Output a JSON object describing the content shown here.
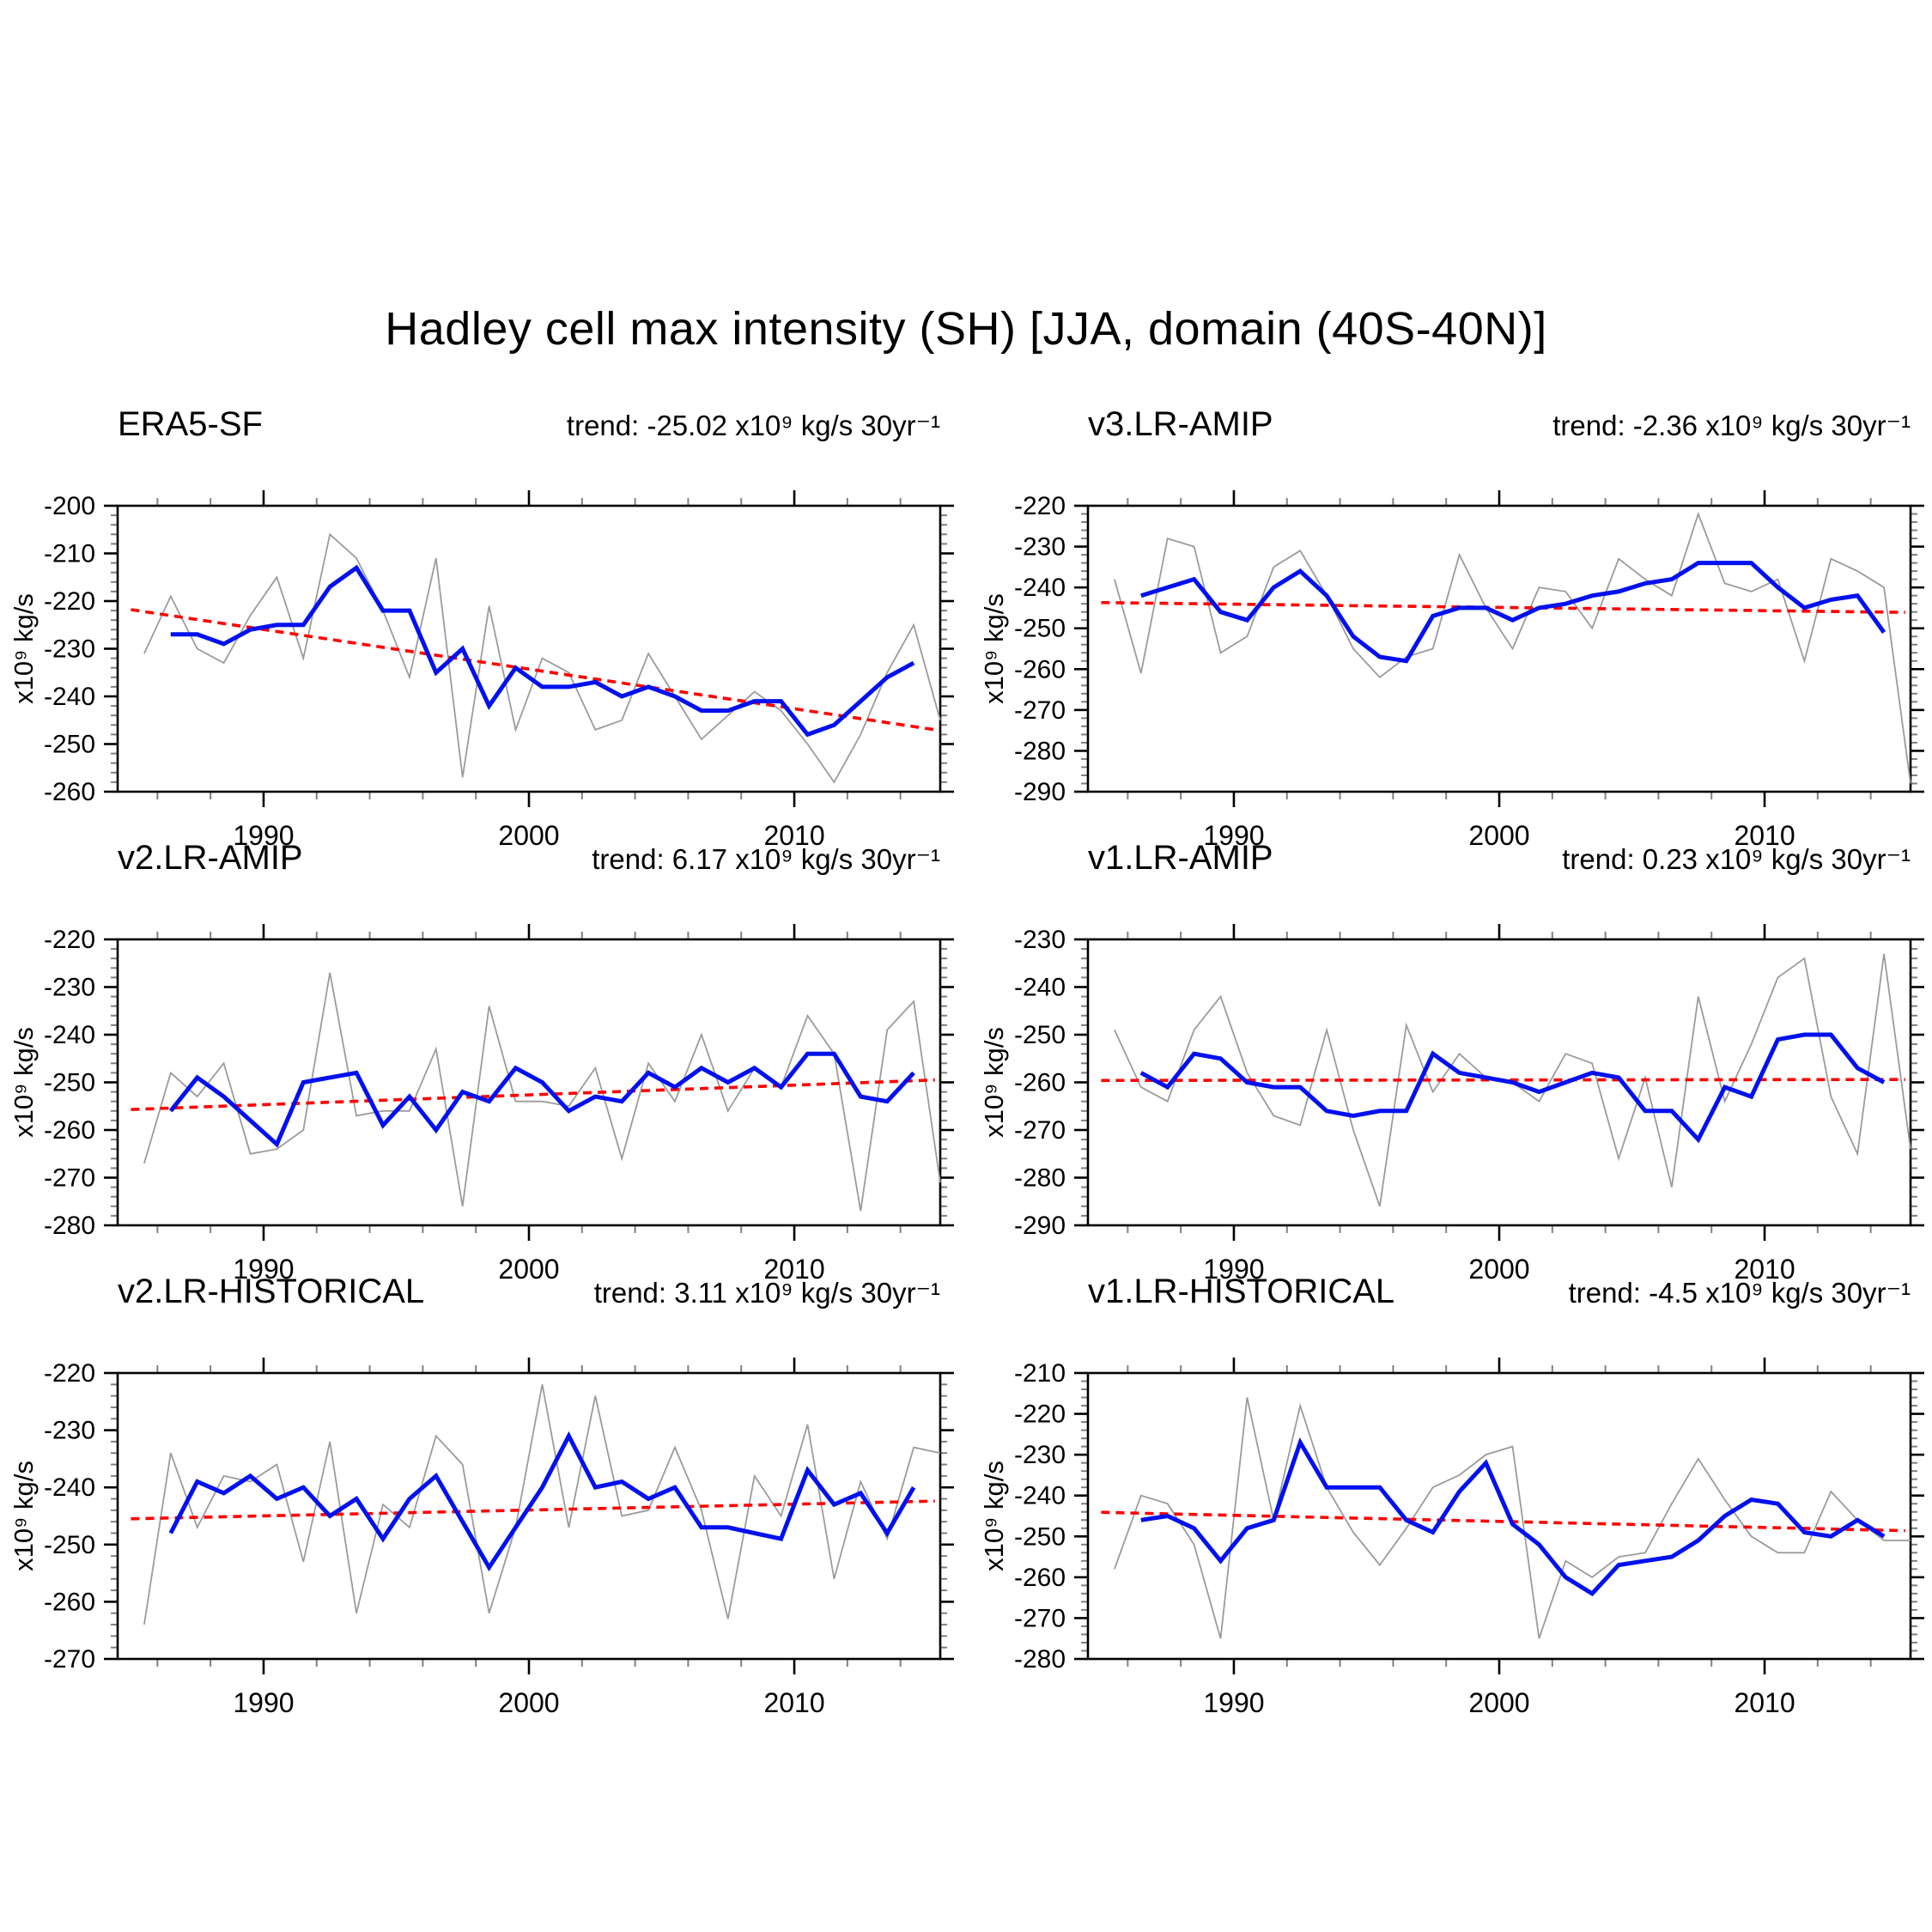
{
  "title": "Hadley cell max intensity (SH) [JJA, domain (40S-40N)]",
  "ylabel": "x10⁹ kg/s",
  "chart_data": {
    "type": "line",
    "title": "Hadley cell max intensity (SH) [JJA, domain (40S-40N)]",
    "xlabel": "",
    "ylabel": "x10⁹ kg/s",
    "grid": false,
    "legend_position": "none",
    "xlim": [
      1984.5,
      2015.5
    ],
    "x_ticks_major": [
      1990,
      2000,
      2010
    ],
    "x_tick_labels": [
      "1990",
      "2000",
      "2010"
    ],
    "x_minor_step": 2,
    "years_annual": [
      1985,
      1986,
      1987,
      1988,
      1989,
      1990,
      1991,
      1992,
      1993,
      1994,
      1995,
      1996,
      1997,
      1998,
      1999,
      2000,
      2001,
      2002,
      2003,
      2004,
      2005,
      2006,
      2007,
      2008,
      2009,
      2010,
      2011,
      2012,
      2013,
      2014,
      2015
    ],
    "years_smoothed": [
      1986,
      1987,
      1988,
      1989,
      1990,
      1991,
      1992,
      1993,
      1994,
      1995,
      1996,
      1997,
      1998,
      1999,
      2000,
      2001,
      2002,
      2003,
      2004,
      2005,
      2006,
      2007,
      2008,
      2009,
      2010,
      2011,
      2012,
      2013,
      2014
    ],
    "series_colors": {
      "annual": "#9b9b9b",
      "smoothed": "#0011ee",
      "trend": "#ff0000"
    },
    "panels": [
      {
        "name": "ERA5-SF",
        "trend_label": "trend: -25.02 x10⁹ kg/s 30yr⁻¹",
        "ylim": [
          -260,
          -200
        ],
        "y_major_step": 10,
        "y_minor_step": 2,
        "annual": [
          -231,
          -219,
          -230,
          -233,
          -223,
          -215,
          -232,
          -206,
          -211,
          -222,
          -236,
          -211,
          -257,
          -221,
          -247,
          -232,
          -235,
          -247,
          -245,
          -231,
          -240,
          -249,
          -244,
          -239,
          -243,
          -250,
          -258,
          -248,
          -235,
          -225,
          -245
        ],
        "smoothed": [
          -227,
          -227,
          -229,
          -226,
          -225,
          -225,
          -217,
          -213,
          -222,
          -222,
          -235,
          -230,
          -242,
          -234,
          -238,
          -238,
          -237,
          -240,
          -238,
          -240,
          -243,
          -243,
          -241,
          -241,
          -248,
          -246,
          -241,
          -236,
          -233
        ],
        "trend_line": {
          "x": [
            1985,
            2015.3
          ],
          "y": [
            -221.8,
            -247.0
          ]
        }
      },
      {
        "name": "v3.LR-AMIP",
        "trend_label": "trend: -2.36 x10⁹ kg/s 30yr⁻¹",
        "ylim": [
          -290,
          -220
        ],
        "y_major_step": 10,
        "y_minor_step": 2,
        "annual": [
          -238,
          -261,
          -228,
          -230,
          -256,
          -252,
          -235,
          -231,
          -242,
          -255,
          -262,
          -257,
          -255,
          -232,
          -245,
          -255,
          -240,
          -241,
          -250,
          -233,
          -238,
          -242,
          -222,
          -239,
          -241,
          -238,
          -258,
          -233,
          -236,
          -240,
          -288
        ],
        "smoothed": [
          -242,
          -240,
          -238,
          -246,
          -248,
          -240,
          -236,
          -242,
          -252,
          -257,
          -258,
          -247,
          -245,
          -245,
          -248,
          -245,
          -244,
          -242,
          -241,
          -239,
          -238,
          -234,
          -234,
          -234,
          -240,
          -245,
          -243,
          -242,
          -251
        ],
        "trend_line": {
          "x": [
            1985,
            2015.3
          ],
          "y": [
            -243.7,
            -246.1
          ]
        }
      },
      {
        "name": "v2.LR-AMIP",
        "trend_label": "trend: 6.17 x10⁹ kg/s 30yr⁻¹",
        "ylim": [
          -280,
          -220
        ],
        "y_major_step": 10,
        "y_minor_step": 2,
        "annual": [
          -267,
          -248,
          -253,
          -246,
          -265,
          -264,
          -260,
          -227,
          -257,
          -256,
          -256,
          -243,
          -276,
          -234,
          -254,
          -254,
          -255,
          -247,
          -266,
          -246,
          -254,
          -240,
          -256,
          -247,
          -251,
          -236,
          -244,
          -277,
          -239,
          -233,
          -271
        ],
        "smoothed": [
          -256,
          -249,
          -253,
          -258,
          -263,
          -250,
          -249,
          -248,
          -259,
          -253,
          -260,
          -252,
          -254,
          -247,
          -250,
          -256,
          -253,
          -254,
          -248,
          -251,
          -247,
          -250,
          -247,
          -251,
          -244,
          -244,
          -253,
          -254,
          -248
        ],
        "trend_line": {
          "x": [
            1985,
            2015.3
          ],
          "y": [
            -255.7,
            -249.5
          ]
        }
      },
      {
        "name": "v1.LR-AMIP",
        "trend_label": "trend: 0.23 x10⁹ kg/s 30yr⁻¹",
        "ylim": [
          -290,
          -230
        ],
        "y_major_step": 10,
        "y_minor_step": 2,
        "annual": [
          -249,
          -261,
          -264,
          -249,
          -242,
          -258,
          -267,
          -269,
          -249,
          -270,
          -286,
          -248,
          -262,
          -254,
          -259,
          -260,
          -264,
          -254,
          -256,
          -276,
          -259,
          -282,
          -242,
          -264,
          -252,
          -238,
          -234,
          -263,
          -275,
          -233,
          -274
        ],
        "smoothed": [
          -258,
          -261,
          -254,
          -255,
          -260,
          -261,
          -261,
          -266,
          -267,
          -266,
          -266,
          -254,
          -258,
          -259,
          -260,
          -262,
          -260,
          -258,
          -259,
          -266,
          -266,
          -272,
          -261,
          -263,
          -251,
          -250,
          -250,
          -257,
          -260
        ],
        "trend_line": {
          "x": [
            1985,
            2015.3
          ],
          "y": [
            -259.6,
            -259.4
          ]
        }
      },
      {
        "name": "v2.LR-HISTORICAL",
        "trend_label": "trend: 3.11 x10⁹ kg/s 30yr⁻¹",
        "ylim": [
          -270,
          -220
        ],
        "y_major_step": 10,
        "y_minor_step": 2,
        "annual": [
          -264,
          -234,
          -247,
          -238,
          -239,
          -236,
          -253,
          -232,
          -262,
          -243,
          -247,
          -231,
          -236,
          -262,
          -247,
          -222,
          -247,
          -224,
          -245,
          -244,
          -233,
          -244,
          -263,
          -238,
          -245,
          -229,
          -256,
          -239,
          -249,
          -233,
          -234
        ],
        "smoothed": [
          -248,
          -239,
          -241,
          -238,
          -242,
          -240,
          -245,
          -242,
          -249,
          -242,
          -238,
          -246,
          -254,
          -247,
          -240,
          -231,
          -240,
          -239,
          -242,
          -240,
          -247,
          -247,
          -248,
          -249,
          -237,
          -243,
          -241,
          -248,
          -240
        ],
        "trend_line": {
          "x": [
            1985,
            2015.3
          ],
          "y": [
            -245.5,
            -242.4
          ]
        }
      },
      {
        "name": "v1.LR-HISTORICAL",
        "trend_label": "trend: -4.5 x10⁹ kg/s 30yr⁻¹",
        "ylim": [
          -280,
          -210
        ],
        "y_major_step": 10,
        "y_minor_step": 2,
        "annual": [
          -258,
          -240,
          -242,
          -252,
          -275,
          -216,
          -246,
          -218,
          -238,
          -249,
          -257,
          -248,
          -238,
          -235,
          -230,
          -228,
          -275,
          -256,
          -260,
          -255,
          -254,
          -242,
          -231,
          -241,
          -250,
          -254,
          -254,
          -239,
          -246,
          -251,
          -251
        ],
        "smoothed": [
          -246,
          -245,
          -248,
          -256,
          -248,
          -246,
          -227,
          -238,
          -238,
          -238,
          -246,
          -249,
          -239,
          -232,
          -247,
          -252,
          -260,
          -264,
          -257,
          -256,
          -255,
          -251,
          -245,
          -241,
          -242,
          -249,
          -250,
          -246,
          -250
        ],
        "trend_line": {
          "x": [
            1985,
            2015.3
          ],
          "y": [
            -244.1,
            -248.6
          ]
        }
      }
    ]
  }
}
